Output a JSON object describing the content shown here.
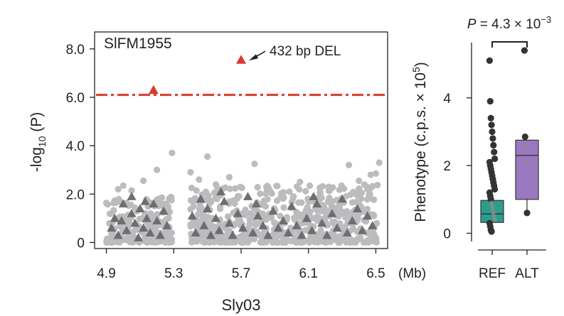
{
  "chart_data": [
    {
      "type": "scatter",
      "title": "SlFM1955",
      "xlabel": "Sly03",
      "xunit": "(Mb)",
      "xlim": [
        4.83,
        6.57
      ],
      "ylim": [
        -0.25,
        8.7
      ],
      "xticks": [
        "4.9",
        "5.3",
        "5.7",
        "6.1",
        "6.5"
      ],
      "xtick_values": [
        4.9,
        5.3,
        5.7,
        6.1,
        6.5
      ],
      "yticks": [
        "0",
        "2.0",
        "4.0",
        "6.0",
        "8.0"
      ],
      "ytick_values": [
        0,
        2,
        4,
        6,
        8
      ],
      "ylabel_parts": {
        "pre": "-log",
        "sub": "10",
        "post": " (P)"
      },
      "threshold": 6.1,
      "colors": {
        "snp": "#bcbcbe",
        "sv": "#6e6e70",
        "highlight": "#d93a2f",
        "threshold": "#d93a2f"
      },
      "annotation": {
        "text": "432 bp DEL",
        "x": 5.7,
        "y": 7.55
      },
      "highlighted": [
        {
          "x": 5.18,
          "y": 6.3
        },
        {
          "x": 5.7,
          "y": 7.55
        }
      ],
      "snp_outliers": [
        {
          "x": 5.29,
          "y": 3.7
        },
        {
          "x": 5.5,
          "y": 3.55
        },
        {
          "x": 5.78,
          "y": 3.25
        },
        {
          "x": 5.2,
          "y": 3.0
        },
        {
          "x": 6.34,
          "y": 3.2
        },
        {
          "x": 6.52,
          "y": 3.3
        },
        {
          "x": 6.47,
          "y": 2.8
        },
        {
          "x": 6.5,
          "y": 2.85
        },
        {
          "x": 5.4,
          "y": 2.9
        },
        {
          "x": 5.63,
          "y": 2.7
        },
        {
          "x": 5.0,
          "y": 2.35
        },
        {
          "x": 5.12,
          "y": 2.55
        },
        {
          "x": 6.05,
          "y": 2.5
        },
        {
          "x": 6.4,
          "y": 2.55
        },
        {
          "x": 4.97,
          "y": 2.2
        },
        {
          "x": 5.45,
          "y": 2.6
        },
        {
          "x": 5.85,
          "y": 2.3
        },
        {
          "x": 6.22,
          "y": 2.3
        },
        {
          "x": 6.45,
          "y": 2.2
        },
        {
          "x": 5.05,
          "y": 2.15
        },
        {
          "x": 5.55,
          "y": 2.4
        }
      ],
      "snp_blocks": [
        {
          "x0": 4.9,
          "x1": 5.29,
          "ymax": 1.9
        },
        {
          "x0": 5.4,
          "x1": 6.51,
          "ymax": 2.4
        }
      ],
      "sv_points": [
        {
          "x": 4.93,
          "y": 0.6
        },
        {
          "x": 4.95,
          "y": 1.0
        },
        {
          "x": 4.97,
          "y": 0.3
        },
        {
          "x": 5.0,
          "y": 1.6
        },
        {
          "x": 5.02,
          "y": 0.5
        },
        {
          "x": 5.05,
          "y": 1.2
        },
        {
          "x": 5.07,
          "y": 0.8
        },
        {
          "x": 5.09,
          "y": 0.2
        },
        {
          "x": 5.1,
          "y": 1.4
        },
        {
          "x": 5.12,
          "y": 0.6
        },
        {
          "x": 5.14,
          "y": 1.0
        },
        {
          "x": 5.16,
          "y": 0.4
        },
        {
          "x": 5.18,
          "y": 1.6
        },
        {
          "x": 5.2,
          "y": 0.9
        },
        {
          "x": 5.22,
          "y": 0.3
        },
        {
          "x": 5.24,
          "y": 1.3
        },
        {
          "x": 5.26,
          "y": 0.7
        },
        {
          "x": 5.05,
          "y": 1.9
        },
        {
          "x": 4.99,
          "y": 0.9
        },
        {
          "x": 5.13,
          "y": 1.7
        },
        {
          "x": 5.41,
          "y": 1.1
        },
        {
          "x": 5.43,
          "y": 0.4
        },
        {
          "x": 5.46,
          "y": 1.8
        },
        {
          "x": 5.48,
          "y": 0.7
        },
        {
          "x": 5.5,
          "y": 1.4
        },
        {
          "x": 5.52,
          "y": 0.3
        },
        {
          "x": 5.55,
          "y": 1.0
        },
        {
          "x": 5.57,
          "y": 0.5
        },
        {
          "x": 5.6,
          "y": 1.7
        },
        {
          "x": 5.63,
          "y": 0.8
        },
        {
          "x": 5.65,
          "y": 0.3
        },
        {
          "x": 5.68,
          "y": 1.2
        },
        {
          "x": 5.71,
          "y": 0.6
        },
        {
          "x": 5.74,
          "y": 1.9
        },
        {
          "x": 5.77,
          "y": 0.4
        },
        {
          "x": 5.8,
          "y": 1.1
        },
        {
          "x": 5.83,
          "y": 0.7
        },
        {
          "x": 5.86,
          "y": 0.3
        },
        {
          "x": 5.89,
          "y": 1.3
        },
        {
          "x": 5.92,
          "y": 0.6
        },
        {
          "x": 5.95,
          "y": 0.9
        },
        {
          "x": 5.98,
          "y": 0.4
        },
        {
          "x": 6.0,
          "y": 1.5
        },
        {
          "x": 6.03,
          "y": 0.7
        },
        {
          "x": 6.06,
          "y": 0.3
        },
        {
          "x": 6.09,
          "y": 1.0
        },
        {
          "x": 6.12,
          "y": 0.5
        },
        {
          "x": 6.15,
          "y": 1.6
        },
        {
          "x": 6.18,
          "y": 0.8
        },
        {
          "x": 6.21,
          "y": 0.3
        },
        {
          "x": 6.24,
          "y": 1.2
        },
        {
          "x": 6.27,
          "y": 0.6
        },
        {
          "x": 6.3,
          "y": 1.8
        },
        {
          "x": 6.33,
          "y": 0.4
        },
        {
          "x": 6.36,
          "y": 0.9
        },
        {
          "x": 6.39,
          "y": 1.4
        },
        {
          "x": 6.42,
          "y": 0.5
        },
        {
          "x": 6.45,
          "y": 1.1
        },
        {
          "x": 6.48,
          "y": 0.7
        },
        {
          "x": 5.58,
          "y": 2.1
        },
        {
          "x": 5.79,
          "y": 1.6
        },
        {
          "x": 6.13,
          "y": 1.9
        }
      ]
    },
    {
      "type": "box",
      "categories": [
        "REF",
        "ALT"
      ],
      "ylabel_parts": {
        "pre": "Phenotype (c.p.s. × 10",
        "sup": "5",
        "post": ")"
      },
      "ylim": [
        -0.2,
        5.8
      ],
      "yticks": [
        "0",
        "2",
        "4"
      ],
      "ytick_values": [
        0,
        2,
        4
      ],
      "pvalue": {
        "pre": "P",
        "mid": " = 4.3 × 10",
        "sup": "−3"
      },
      "boxes": [
        {
          "name": "REF",
          "color": "#2a9d8f",
          "q1": 0.32,
          "median": 0.57,
          "q3": 0.97,
          "whisker_low": 0.0,
          "whisker_high": 1.55,
          "points": [
            5.1,
            3.9,
            3.4,
            3.2,
            3.0,
            2.8,
            2.6,
            2.4,
            2.2,
            2.1,
            2.0,
            1.9,
            1.8,
            1.7,
            1.6,
            1.5,
            1.4,
            1.3,
            1.2,
            1.1,
            1.0,
            0.9,
            0.8,
            0.7,
            0.6,
            0.5,
            0.4,
            0.3,
            0.2,
            0.1,
            0.05
          ]
        },
        {
          "name": "ALT",
          "color": "#9b79c0",
          "q1": 1.0,
          "median": 2.3,
          "q3": 2.75,
          "whisker_low": 0.6,
          "whisker_high": 2.75,
          "points": [
            5.4,
            2.85,
            2.6,
            2.1,
            0.6
          ]
        }
      ]
    }
  ]
}
